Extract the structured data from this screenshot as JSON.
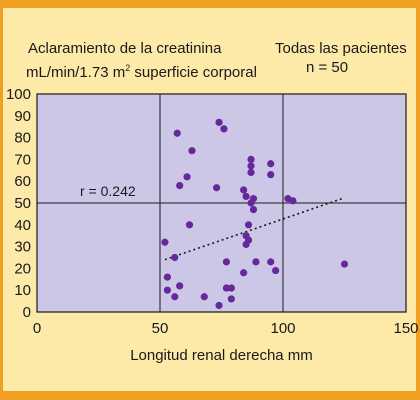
{
  "colors": {
    "background": "#fde9a8",
    "edge": "#f0a020",
    "plot_area": "#ccc7e6",
    "grid": "#1a1a1a",
    "point": "#66289a",
    "trend": "#1a1a1a"
  },
  "header": {
    "title_line1": "Aclaramiento de la creatinina",
    "title_line2_pre": "mL/min/1.73 m",
    "title_line2_sup": "2",
    "title_line2_post": " superficie corporal",
    "group_line1": "Todas las pacientes",
    "group_line2": "n = 50"
  },
  "chart_data": {
    "type": "scatter",
    "title": "Aclaramiento de la creatinina mL/min/1.73 m² superficie corporal",
    "xlabel": "Longitud renal derecha mm",
    "ylabel": "",
    "xlim": [
      0,
      150
    ],
    "ylim": [
      0,
      100
    ],
    "x_ticks": [
      0,
      50,
      100,
      150
    ],
    "y_ticks": [
      0,
      10,
      20,
      30,
      40,
      50,
      60,
      70,
      80,
      90,
      100
    ],
    "grid": "vertical lines at each x tick; horizontal lines at 50 and 100",
    "annotation": "r = 0.242",
    "trendline": {
      "style": "dotted",
      "from": [
        52,
        24
      ],
      "to": [
        124,
        52
      ]
    },
    "points": [
      {
        "x": 57,
        "y": 82
      },
      {
        "x": 74,
        "y": 87
      },
      {
        "x": 76,
        "y": 84
      },
      {
        "x": 63,
        "y": 74
      },
      {
        "x": 87,
        "y": 70
      },
      {
        "x": 87,
        "y": 67
      },
      {
        "x": 95,
        "y": 68
      },
      {
        "x": 95,
        "y": 63
      },
      {
        "x": 87,
        "y": 64
      },
      {
        "x": 61,
        "y": 62
      },
      {
        "x": 58,
        "y": 58
      },
      {
        "x": 73,
        "y": 57
      },
      {
        "x": 84,
        "y": 56
      },
      {
        "x": 85,
        "y": 53
      },
      {
        "x": 88,
        "y": 52
      },
      {
        "x": 102,
        "y": 52
      },
      {
        "x": 104,
        "y": 51
      },
      {
        "x": 87,
        "y": 50
      },
      {
        "x": 88,
        "y": 47
      },
      {
        "x": 62,
        "y": 40
      },
      {
        "x": 86,
        "y": 40
      },
      {
        "x": 85,
        "y": 35
      },
      {
        "x": 86,
        "y": 33
      },
      {
        "x": 85,
        "y": 31
      },
      {
        "x": 52,
        "y": 32
      },
      {
        "x": 56,
        "y": 25
      },
      {
        "x": 77,
        "y": 23
      },
      {
        "x": 89,
        "y": 23
      },
      {
        "x": 95,
        "y": 23
      },
      {
        "x": 97,
        "y": 19
      },
      {
        "x": 84,
        "y": 18
      },
      {
        "x": 53,
        "y": 16
      },
      {
        "x": 58,
        "y": 12
      },
      {
        "x": 53,
        "y": 10
      },
      {
        "x": 77,
        "y": 11
      },
      {
        "x": 79,
        "y": 11
      },
      {
        "x": 56,
        "y": 7
      },
      {
        "x": 68,
        "y": 7
      },
      {
        "x": 79,
        "y": 6
      },
      {
        "x": 74,
        "y": 3
      },
      {
        "x": 125,
        "y": 22
      }
    ]
  }
}
